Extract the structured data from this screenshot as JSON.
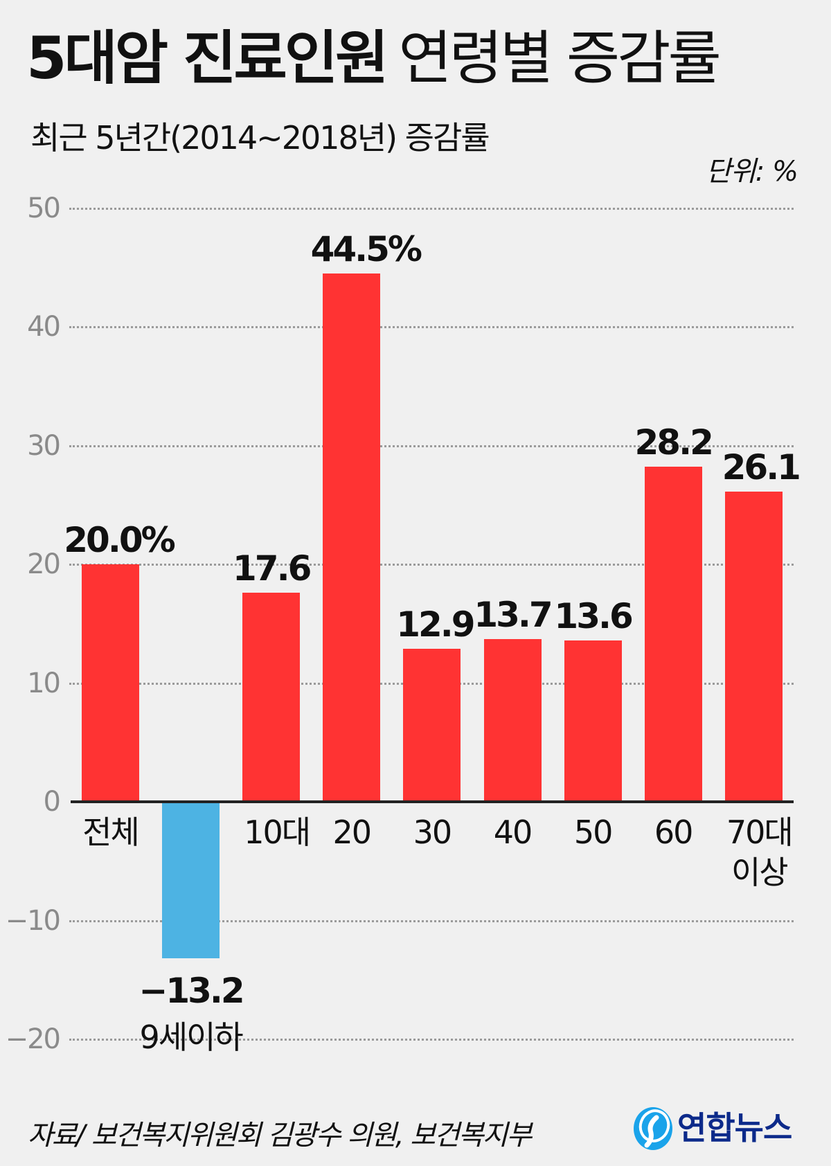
{
  "header": {
    "title_bold": "5대암 진료인원",
    "title_light": "연령별 증감률",
    "subtitle": "최근 5년간(2014~2018년) 증감률",
    "unit": "단위: %"
  },
  "footer": {
    "source": "자료/ 보건복지위원회 김광수 의원, 보건복지부",
    "logo_text": "연합뉴스",
    "logo_icon": "yonhap-logo-icon"
  },
  "colors": {
    "positive": "#ff3333",
    "negative": "#4db3e3",
    "background": "#f0f0f0",
    "gridline": "#9a9a9a",
    "logo_text": "#0c2a8a",
    "logo_mark": "#1aa3ea"
  },
  "y_ticks": [
    "50",
    "40",
    "30",
    "20",
    "10",
    "0",
    "−10",
    "−20"
  ],
  "bars": [
    {
      "label": "전체",
      "label2": "",
      "value": 20.0,
      "display": "20.0%"
    },
    {
      "label": "9세이하",
      "label2": "",
      "value": -13.2,
      "display": "−13.2"
    },
    {
      "label": "10대",
      "label2": "",
      "value": 17.6,
      "display": "17.6"
    },
    {
      "label": "20",
      "label2": "",
      "value": 44.5,
      "display": "44.5%"
    },
    {
      "label": "30",
      "label2": "",
      "value": 12.9,
      "display": "12.9"
    },
    {
      "label": "40",
      "label2": "",
      "value": 13.7,
      "display": "13.7"
    },
    {
      "label": "50",
      "label2": "",
      "value": 13.6,
      "display": "13.6"
    },
    {
      "label": "60",
      "label2": "",
      "value": 28.2,
      "display": "28.2"
    },
    {
      "label": "70대",
      "label2": "이상",
      "value": 26.1,
      "display": "26.1"
    }
  ],
  "chart_data": {
    "type": "bar",
    "title": "5대암 진료인원 연령별 증감률",
    "subtitle": "최근 5년간(2014~2018년) 증감률",
    "categories": [
      "전체",
      "9세이하",
      "10대",
      "20",
      "30",
      "40",
      "50",
      "60",
      "70대 이상"
    ],
    "values": [
      20.0,
      -13.2,
      17.6,
      44.5,
      12.9,
      13.7,
      13.6,
      28.2,
      26.1
    ],
    "value_labels": [
      "20.0%",
      "−13.2",
      "17.6",
      "44.5%",
      "12.9",
      "13.7",
      "13.6",
      "28.2",
      "26.1"
    ],
    "xlabel": "",
    "ylabel": "",
    "unit": "%",
    "ylim": [
      -20,
      50
    ],
    "yticks": [
      -20,
      -10,
      0,
      10,
      20,
      30,
      40,
      50
    ],
    "grid": true,
    "grid_style": "dotted",
    "legend": null,
    "source": "자료/ 보건복지위원회 김광수 의원, 보건복지부"
  }
}
